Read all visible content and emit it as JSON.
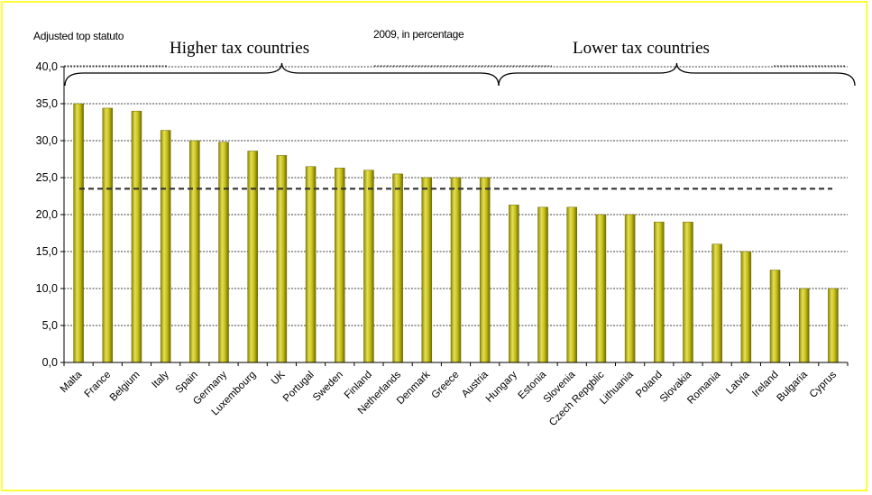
{
  "chart_data": {
    "type": "bar",
    "title_fragment_left": "Adjusted top statuto",
    "title_fragment_right": "2009, in percentage",
    "group_labels": [
      "Higher tax countries",
      "Lower tax countries"
    ],
    "categories": [
      "Malta",
      "France",
      "Belgium",
      "Italy",
      "Spain",
      "Germany",
      "Luxembourg",
      "UK",
      "Portugal",
      "Sweden",
      "Finland",
      "Netherlands",
      "Denmark",
      "Greece",
      "Austria",
      "Hungary",
      "Estonia",
      "Slovenia",
      "Czech Repgblic",
      "Lithuania",
      "Poland",
      "Slovakia",
      "Romania",
      "Latvia",
      "Ireland",
      "Bulgaria",
      "Cyprus"
    ],
    "values": [
      35.0,
      34.4,
      34.0,
      31.4,
      30.0,
      29.8,
      28.6,
      28.0,
      26.5,
      26.3,
      26.0,
      25.5,
      25.0,
      25.0,
      25.0,
      21.3,
      21.0,
      21.0,
      20.0,
      20.0,
      19.0,
      19.0,
      16.0,
      15.0,
      12.5,
      10.0,
      10.0
    ],
    "average": 23.5,
    "ylim": [
      0,
      40
    ],
    "yticks": [
      "0,0",
      "5,0",
      "10,0",
      "15,0",
      "20,0",
      "25,0",
      "30,0",
      "35,0",
      "40,0"
    ],
    "grid": true,
    "colors": {
      "bar": "#b8b20f",
      "bar_highlight": "#e4df55",
      "bar_shadow": "#6e6a00",
      "average_line": "#333333",
      "frame": "#ffff33"
    }
  }
}
